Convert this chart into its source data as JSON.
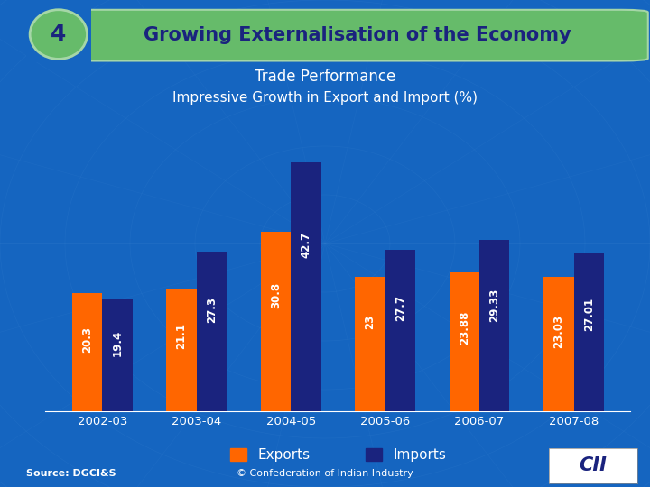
{
  "title_number": "4",
  "title_text": "Growing Externalisation of the Economy",
  "subtitle1": "Trade Performance",
  "subtitle2": "Impressive Growth in Export and Import (%)",
  "categories": [
    "2002-03",
    "2003-04",
    "2004-05",
    "2005-06",
    "2006-07",
    "2007-08"
  ],
  "exports": [
    20.3,
    21.1,
    30.8,
    23,
    23.88,
    23.03
  ],
  "exports_labels": [
    "20.3",
    "21.1",
    "30.8",
    "23",
    "23.88",
    "23.03"
  ],
  "imports": [
    19.4,
    27.3,
    42.7,
    27.7,
    29.33,
    27.01
  ],
  "imports_labels": [
    "19.4",
    "27.3",
    "42.7",
    "27.7",
    "29.33",
    "27.01"
  ],
  "export_color": "#FF6600",
  "import_color": "#1A237E",
  "bg_color": "#1565C0",
  "bg_color_dark": "#0D47A1",
  "title_bg_color": "#66BB6A",
  "title_number_bg": "#66BB6A",
  "title_number_border": "#A5D6A7",
  "bar_label_color": "#FFFFFF",
  "source_text": "Source: DGCI&S",
  "footer_text": "© Confederation of Indian Industry",
  "ylim": [
    0,
    50
  ],
  "bar_width": 0.32
}
